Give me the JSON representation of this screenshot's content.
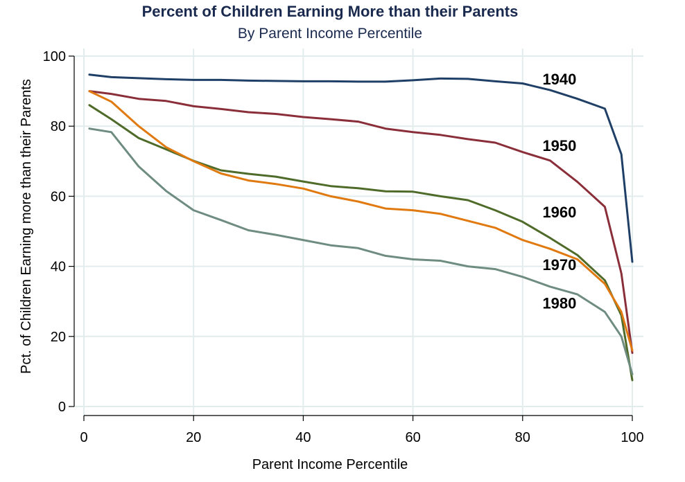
{
  "chart_data": {
    "type": "line",
    "title": "Percent of Children Earning More than their Parents",
    "subtitle": "By Parent Income Percentile",
    "xlabel": "Parent Income Percentile",
    "ylabel": "Pct. of Children Earning more than their Parents",
    "xlim": [
      0,
      100
    ],
    "ylim": [
      0,
      100
    ],
    "xticks": [
      "0",
      "20",
      "40",
      "60",
      "80",
      "100"
    ],
    "yticks": [
      "0",
      "20",
      "40",
      "60",
      "80",
      "100"
    ],
    "grid": true,
    "legend": "none (inline labels)",
    "x": [
      1,
      5,
      10,
      15,
      20,
      25,
      30,
      35,
      40,
      45,
      50,
      55,
      60,
      65,
      70,
      75,
      80,
      85,
      90,
      95,
      98,
      100
    ],
    "series": [
      {
        "name": "1940",
        "color": "#1f3f66",
        "values": [
          94.7,
          94.0,
          93.7,
          93.4,
          93.2,
          93.2,
          93.0,
          92.9,
          92.8,
          92.8,
          92.7,
          92.7,
          93.1,
          93.6,
          93.5,
          92.8,
          92.2,
          90.3,
          87.8,
          85.0,
          72.0,
          41.3
        ]
      },
      {
        "name": "1950",
        "color": "#8a2f3a",
        "values": [
          90.0,
          89.2,
          87.8,
          87.2,
          85.7,
          84.9,
          84.0,
          83.5,
          82.6,
          82.0,
          81.3,
          79.3,
          78.3,
          77.5,
          76.3,
          75.3,
          72.6,
          70.2,
          64.1,
          57.0,
          38.0,
          15.3
        ]
      },
      {
        "name": "1960",
        "color": "#4f6b2a",
        "values": [
          86.0,
          82.0,
          76.6,
          73.4,
          70.1,
          67.4,
          66.4,
          65.6,
          64.2,
          62.9,
          62.3,
          61.4,
          61.3,
          60.0,
          58.9,
          56.0,
          52.7,
          48.1,
          43.2,
          36.0,
          26.0,
          7.5
        ]
      },
      {
        "name": "1970",
        "color": "#e07a10",
        "values": [
          90.0,
          87.0,
          80.0,
          74.0,
          70.0,
          66.5,
          64.5,
          63.5,
          62.2,
          60.0,
          58.5,
          56.5,
          56.0,
          55.0,
          53.0,
          51.0,
          47.5,
          45.0,
          42.0,
          35.0,
          27.0,
          16.0
        ]
      },
      {
        "name": "1980",
        "color": "#6e8c80",
        "values": [
          79.3,
          78.3,
          68.5,
          61.5,
          56.0,
          53.2,
          50.3,
          49.0,
          47.5,
          46.0,
          45.2,
          43.0,
          42.0,
          41.6,
          40.0,
          39.2,
          37.0,
          34.2,
          32.0,
          27.0,
          20.0,
          9.2
        ]
      }
    ],
    "annotations": [
      {
        "text": "1940",
        "x": 84,
        "y": 93.5
      },
      {
        "text": "1950",
        "x": 84,
        "y": 74.5
      },
      {
        "text": "1960",
        "x": 84,
        "y": 55.5
      },
      {
        "text": "1970",
        "x": 84,
        "y": 40.5
      },
      {
        "text": "1980",
        "x": 84,
        "y": 29.5
      }
    ]
  }
}
